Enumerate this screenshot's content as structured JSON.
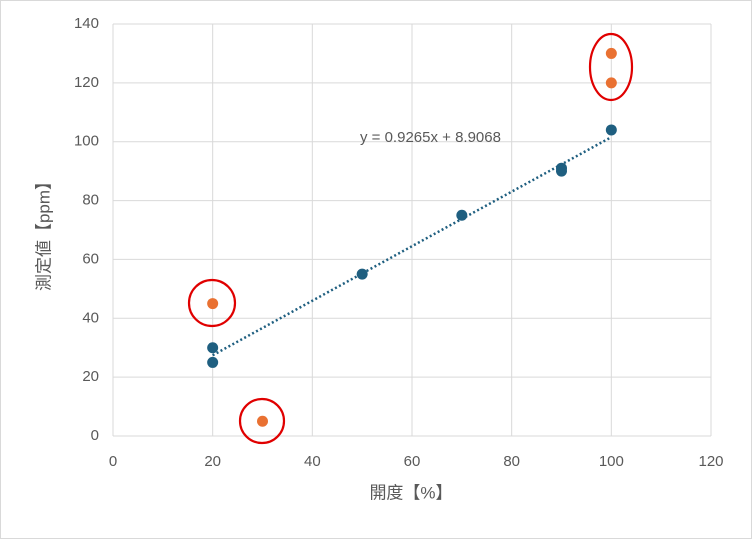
{
  "chart_data": {
    "type": "scatter",
    "x_label": "開度【%】",
    "y_label": "測定値【ppm】",
    "series": [
      {
        "color": "#1f5f80",
        "x": [
          20,
          20,
          50,
          70,
          90,
          90,
          100
        ],
        "values": [
          30,
          25,
          55,
          75,
          91,
          90,
          104
        ]
      },
      {
        "color": "#e97132",
        "x": [
          20,
          30,
          100,
          100
        ],
        "values": [
          45,
          5,
          130,
          120
        ]
      }
    ],
    "trendline": {
      "label": "y = 0.9265x + 8.9068",
      "slope": 0.9265,
      "intercept": 8.9068,
      "color": "#1f5f80"
    },
    "xlim": [
      0,
      120
    ],
    "xticks": [
      0,
      20,
      40,
      60,
      80,
      100,
      120
    ],
    "ylim": [
      0,
      140
    ],
    "yticks": [
      0,
      20,
      40,
      60,
      80,
      100,
      120,
      140
    ],
    "grid": true
  }
}
